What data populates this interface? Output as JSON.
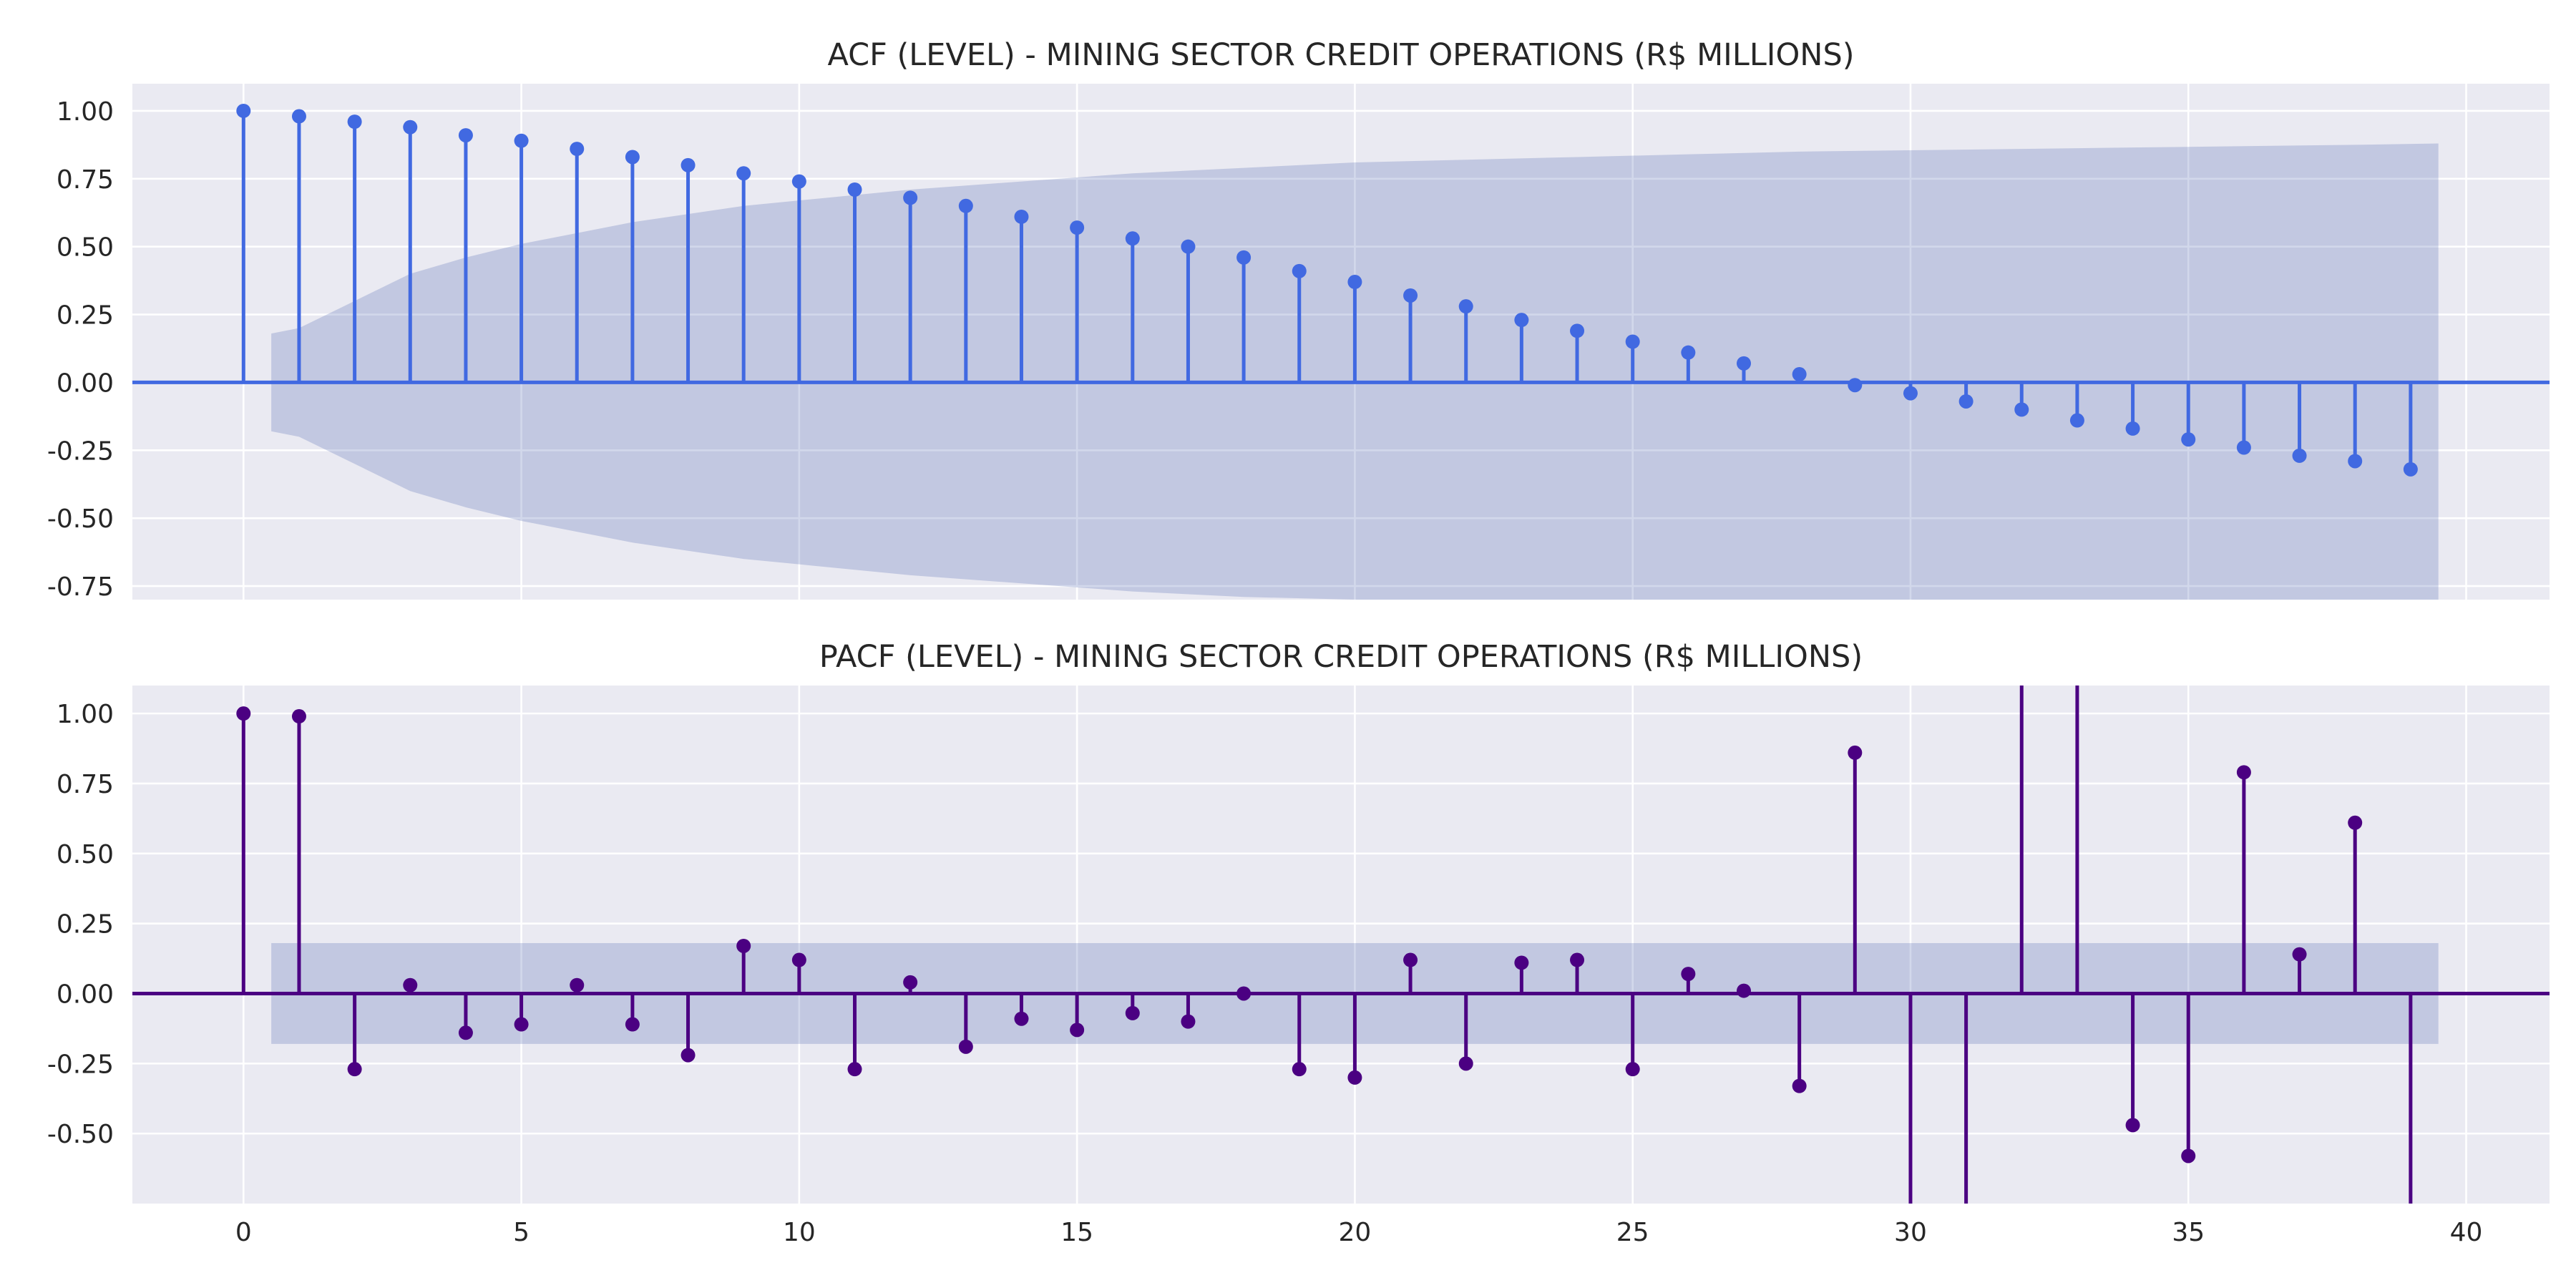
{
  "chart_data": [
    {
      "type": "stem",
      "title": "ACF (LEVEL) - MINING SECTOR CREDIT OPERATIONS (R$ MILLIONS)",
      "xlabel": "",
      "ylabel": "",
      "xlim": [
        -2,
        41.5
      ],
      "ylim": [
        -0.8,
        1.1
      ],
      "xticks": [
        "0",
        "5",
        "10",
        "15",
        "20",
        "25",
        "30",
        "35",
        "40"
      ],
      "yticks": [
        "1.00",
        "0.75",
        "0.50",
        "0.25",
        "0.00",
        "-0.25",
        "-0.50",
        "-0.75"
      ],
      "grid": true,
      "color": "#4169e1",
      "lags": [
        0,
        1,
        2,
        3,
        4,
        5,
        6,
        7,
        8,
        9,
        10,
        11,
        12,
        13,
        14,
        15,
        16,
        17,
        18,
        19,
        20,
        21,
        22,
        23,
        24,
        25,
        26,
        27,
        28,
        29,
        30,
        31,
        32,
        33,
        34,
        35,
        36,
        37,
        38,
        39
      ],
      "values": [
        1.0,
        0.98,
        0.96,
        0.94,
        0.91,
        0.89,
        0.86,
        0.83,
        0.8,
        0.77,
        0.74,
        0.71,
        0.68,
        0.65,
        0.61,
        0.57,
        0.53,
        0.5,
        0.46,
        0.41,
        0.37,
        0.32,
        0.28,
        0.23,
        0.19,
        0.15,
        0.11,
        0.07,
        0.03,
        -0.01,
        -0.04,
        -0.07,
        -0.1,
        -0.14,
        -0.17,
        -0.21,
        -0.24,
        -0.27,
        -0.29,
        -0.32
      ],
      "confidence_band": {
        "lags": [
          0.5,
          1,
          2,
          3,
          4,
          5,
          6,
          7,
          8,
          9,
          10,
          12,
          14,
          16,
          18,
          20,
          22,
          24,
          26,
          28,
          30,
          32,
          34,
          36,
          38,
          39.5
        ],
        "upper": [
          0.18,
          0.2,
          0.3,
          0.4,
          0.46,
          0.51,
          0.55,
          0.59,
          0.62,
          0.65,
          0.67,
          0.71,
          0.74,
          0.77,
          0.79,
          0.81,
          0.82,
          0.83,
          0.84,
          0.85,
          0.855,
          0.86,
          0.865,
          0.87,
          0.875,
          0.88
        ]
      }
    },
    {
      "type": "stem",
      "title": "PACF (LEVEL) - MINING SECTOR CREDIT OPERATIONS (R$ MILLIONS)",
      "xlabel": "",
      "ylabel": "",
      "xlim": [
        -2,
        41.5
      ],
      "ylim": [
        -0.75,
        1.1
      ],
      "xticks": [
        "0",
        "5",
        "10",
        "15",
        "20",
        "25",
        "30",
        "35",
        "40"
      ],
      "yticks": [
        "1.00",
        "0.75",
        "0.50",
        "0.25",
        "0.00",
        "-0.25",
        "-0.50"
      ],
      "grid": true,
      "color": "#4b0082",
      "lags": [
        0,
        1,
        2,
        3,
        4,
        5,
        6,
        7,
        8,
        9,
        10,
        11,
        12,
        13,
        14,
        15,
        16,
        17,
        18,
        19,
        20,
        21,
        22,
        23,
        24,
        25,
        26,
        27,
        28,
        29,
        30,
        31,
        32,
        33,
        34,
        35,
        36,
        37,
        38,
        39
      ],
      "values": [
        1.0,
        0.99,
        -0.27,
        0.03,
        -0.14,
        -0.11,
        0.03,
        -0.11,
        -0.22,
        0.17,
        0.12,
        -0.27,
        0.04,
        -0.19,
        -0.09,
        -0.13,
        -0.07,
        -0.1,
        0.0,
        -0.27,
        -0.3,
        0.12,
        -0.25,
        0.11,
        0.12,
        -0.27,
        0.07,
        0.01,
        -0.33,
        0.86,
        -1.2,
        -1.2,
        1.5,
        1.5,
        -0.47,
        -0.58,
        0.79,
        0.14,
        0.61,
        -1.2
      ],
      "confidence_band": {
        "lags": [
          0.5,
          39.5
        ],
        "upper": [
          0.18,
          0.18
        ]
      }
    }
  ]
}
